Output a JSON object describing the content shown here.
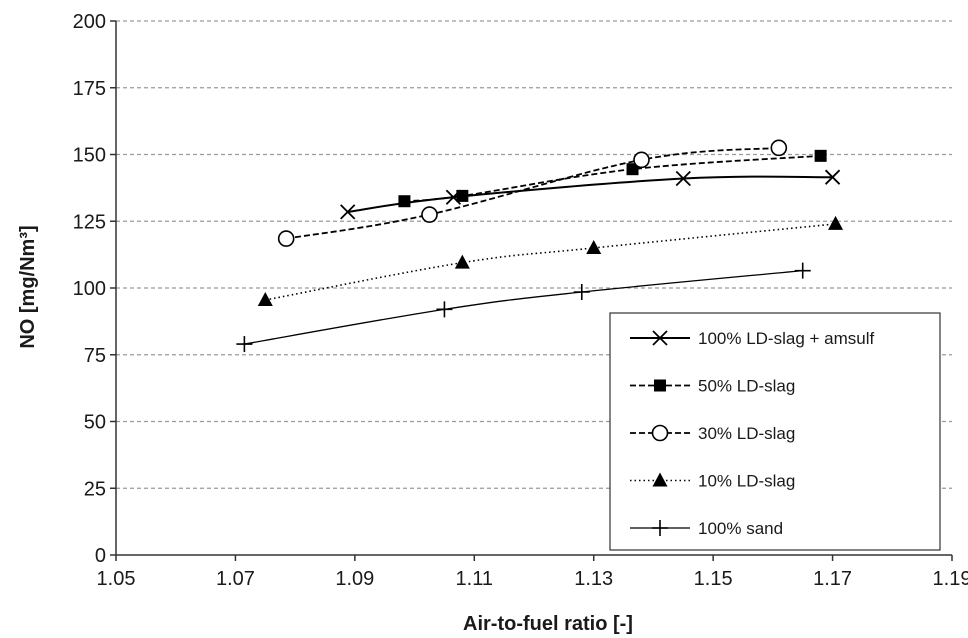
{
  "chart_data": {
    "type": "line",
    "xlabel": "Air-to-fuel ratio [-]",
    "ylabel": "NO [mg/Nm³]",
    "xlim": [
      1.05,
      1.19
    ],
    "ylim": [
      0,
      200
    ],
    "x_ticks": [
      "1.05",
      "1.07",
      "1.09",
      "1.11",
      "1.13",
      "1.15",
      "1.17",
      "1.19"
    ],
    "y_ticks": [
      "0",
      "25",
      "50",
      "75",
      "100",
      "125",
      "150",
      "175",
      "200"
    ],
    "grid": "horizontal dashed",
    "legend_position": "bottom-right",
    "series": [
      {
        "name": "100% LD-slag + amsulf",
        "marker": "x",
        "line": "solid",
        "color": "#000000",
        "points": [
          [
            1.0888,
            128.5
          ],
          [
            1.1065,
            134.0
          ],
          [
            1.145,
            141.0
          ],
          [
            1.17,
            141.5
          ]
        ]
      },
      {
        "name": "50% LD-slag",
        "marker": "square",
        "line": "dashed",
        "color": "#000000",
        "points": [
          [
            1.0983,
            132.5
          ],
          [
            1.108,
            134.5
          ],
          [
            1.1365,
            144.5
          ],
          [
            1.168,
            149.5
          ]
        ]
      },
      {
        "name": "30% LD-slag",
        "marker": "circle",
        "line": "dashed",
        "color": "#000000",
        "points": [
          [
            1.0785,
            118.5
          ],
          [
            1.1025,
            127.5
          ],
          [
            1.138,
            148.0
          ],
          [
            1.161,
            152.5
          ]
        ]
      },
      {
        "name": "10% LD-slag",
        "marker": "triangle",
        "line": "dotted",
        "color": "#000000",
        "points": [
          [
            1.075,
            95.5
          ],
          [
            1.108,
            109.5
          ],
          [
            1.13,
            115.0
          ],
          [
            1.1705,
            124.0
          ]
        ]
      },
      {
        "name": "100% sand",
        "marker": "plus",
        "line": "solid-thin",
        "color": "#000000",
        "points": [
          [
            1.0715,
            79.0
          ],
          [
            1.105,
            92.0
          ],
          [
            1.128,
            98.5
          ],
          [
            1.165,
            106.5
          ]
        ]
      }
    ]
  }
}
